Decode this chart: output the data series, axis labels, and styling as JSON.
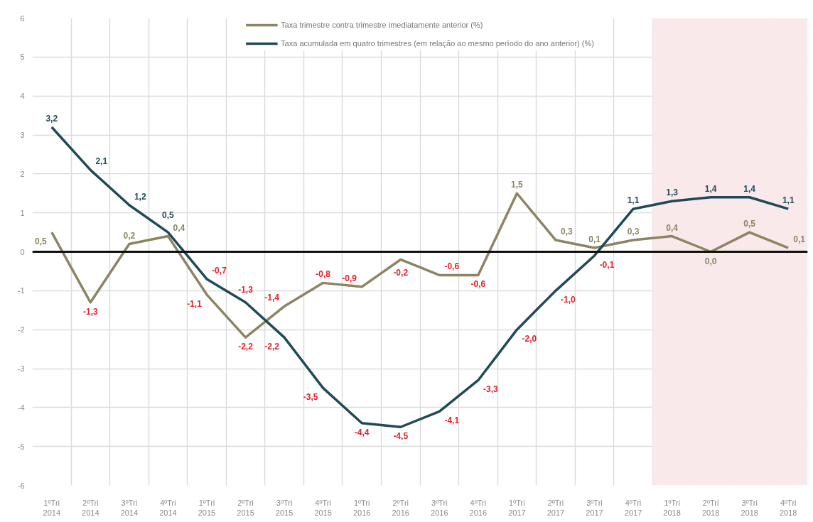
{
  "chart_data": {
    "type": "line",
    "categories": [
      "1ºTri 2014",
      "2ºTri 2014",
      "3ºTri 2014",
      "4ºTri 2014",
      "1ºTri 2015",
      "2ºTri 2015",
      "3ºTri 2015",
      "4ºTri 2015",
      "1ºTri 2016",
      "2ºTri 2016",
      "3ºTri 2016",
      "4ºTri 2016",
      "1ºTri 2017",
      "2ºTri 2017",
      "3ºTri 2017",
      "4ºTri 2017",
      "1ºTri 2018",
      "2ºTri 2018",
      "3ºTri 2018",
      "4ºTri 2018"
    ],
    "series": [
      {
        "name": "Taxa trimestre contra trimestre imediatamente anterior (%)",
        "color": "#8c8563",
        "values": [
          0.5,
          -1.3,
          0.2,
          0.4,
          -1.1,
          -2.2,
          -1.4,
          -0.8,
          -0.9,
          -0.2,
          -0.6,
          -0.6,
          1.5,
          0.3,
          0.1,
          0.3,
          0.4,
          0.0,
          0.5,
          0.1
        ],
        "value_labels": [
          "0,5",
          "-1,3",
          "0,2",
          "0,4",
          "-1,1",
          "-2,2",
          "-1,4",
          "-0,8",
          "-0,9",
          "-0,2",
          "-0,6",
          "-0,6",
          "1,5",
          "0,3",
          "0,1",
          "0,3",
          "0,4",
          "0,0",
          "0,5",
          "0,1"
        ]
      },
      {
        "name": "Taxa acumulada em quatro trimestres (em relação ao mesmo período do ano anterior) (%)",
        "color": "#1f4a57",
        "values": [
          3.2,
          2.1,
          1.2,
          0.5,
          -0.7,
          -1.3,
          -2.2,
          -3.5,
          -4.4,
          -4.5,
          -4.1,
          -3.3,
          -2.0,
          -1.0,
          -0.1,
          1.1,
          1.3,
          1.4,
          1.4,
          1.1
        ],
        "value_labels": [
          "3,2",
          "2,1",
          "1,2",
          "0,5",
          "-0,7",
          "-1,3",
          "-2,2",
          "-3,5",
          "-4,4",
          "-4,5",
          "-4,1",
          "-3,3",
          "-2,0",
          "-1,0",
          "-0,1",
          "1,1",
          "1,3",
          "1,4",
          "1,4",
          "1,1"
        ]
      }
    ],
    "ylim": [
      -6,
      6
    ],
    "yticks": [
      -6,
      -5,
      -4,
      -3,
      -2,
      -1,
      0,
      1,
      2,
      3,
      4,
      5,
      6
    ],
    "grid": true,
    "legend": "top",
    "ref_lines": [
      {
        "axis": "y",
        "value": 0,
        "color": "#111111"
      }
    ],
    "bands": [
      {
        "axis": "x",
        "from": "1ºTri 2018",
        "to": "4ºTri 2018",
        "color": "#f9e9ea"
      }
    ]
  }
}
